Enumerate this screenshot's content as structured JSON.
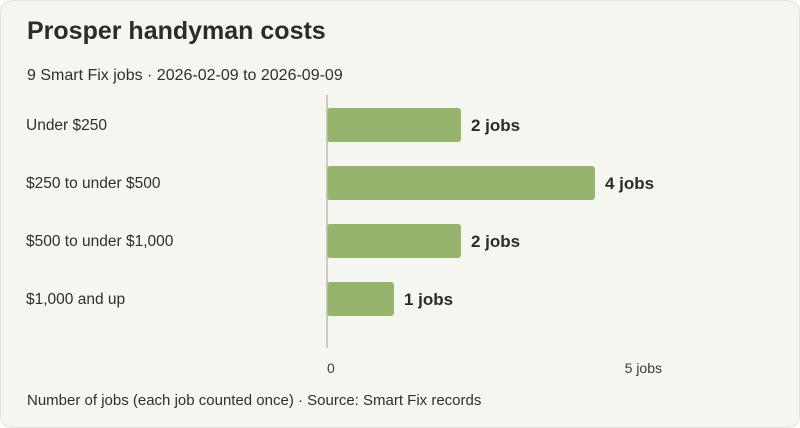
{
  "title": "Prosper handyman costs",
  "subtitle": "9 Smart Fix jobs · 2026-02-09 to 2026-09-09",
  "footer": "Number of jobs (each job counted once) · Source: Smart Fix records",
  "colors": {
    "bar": "#97b46c",
    "axis": "#b9bdb0",
    "background": "#f5f6f0"
  },
  "chart_data": {
    "type": "bar",
    "orientation": "horizontal",
    "categories": [
      "Under $250",
      "$250 to under $500",
      "$500 to under $1,000",
      "$1,000 and up"
    ],
    "values": [
      2,
      4,
      2,
      1
    ],
    "value_labels": [
      "2 jobs",
      "4 jobs",
      "2 jobs",
      "1 jobs"
    ],
    "xlim": [
      0,
      5
    ],
    "ticks": [
      {
        "value": 0,
        "label": "0"
      },
      {
        "value": 5,
        "label": "5 jobs"
      }
    ],
    "grid": false,
    "legend": "none"
  }
}
